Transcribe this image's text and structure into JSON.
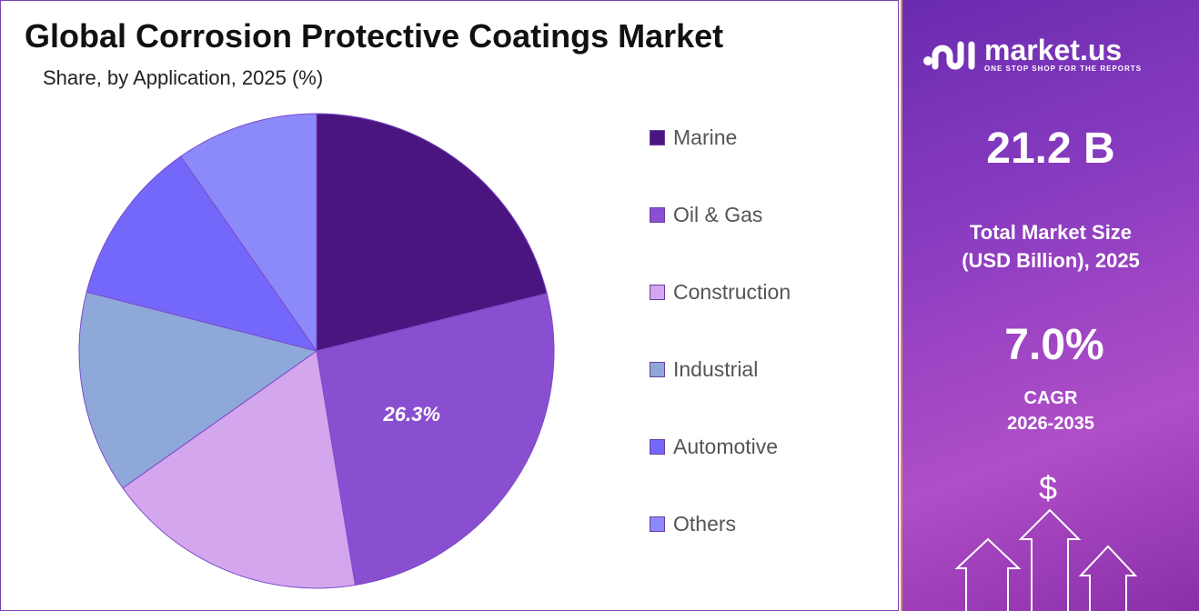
{
  "title": "Global Corrosion Protective Coatings Market",
  "subtitle": "Share, by Application, 2025 (%)",
  "chart_data": {
    "type": "pie",
    "categories": [
      "Marine",
      "Oil & Gas",
      "Construction",
      "Industrial",
      "Automotive",
      "Others"
    ],
    "values": [
      21.1,
      26.3,
      17.8,
      13.8,
      11.3,
      9.7
    ],
    "colors": [
      "#4b1580",
      "#8a4fd0",
      "#d4a6ee",
      "#8fa8da",
      "#7468fb",
      "#8c89fb"
    ],
    "data_labels": [
      {
        "category": "Oil & Gas",
        "text": "26.3%"
      }
    ],
    "start": "12 o'clock",
    "direction": "clockwise",
    "legend_position": "right"
  },
  "brand": {
    "name": "market.us",
    "tagline": "ONE STOP SHOP FOR THE REPORTS"
  },
  "stats": {
    "market_size": "21.2 B",
    "market_size_label_1": "Total Market Size",
    "market_size_label_2": "(USD Billion), 2025",
    "cagr": "7.0%",
    "cagr_label_1": "CAGR",
    "cagr_label_2": "2026-2035"
  },
  "decor": {
    "dollar": "$"
  }
}
